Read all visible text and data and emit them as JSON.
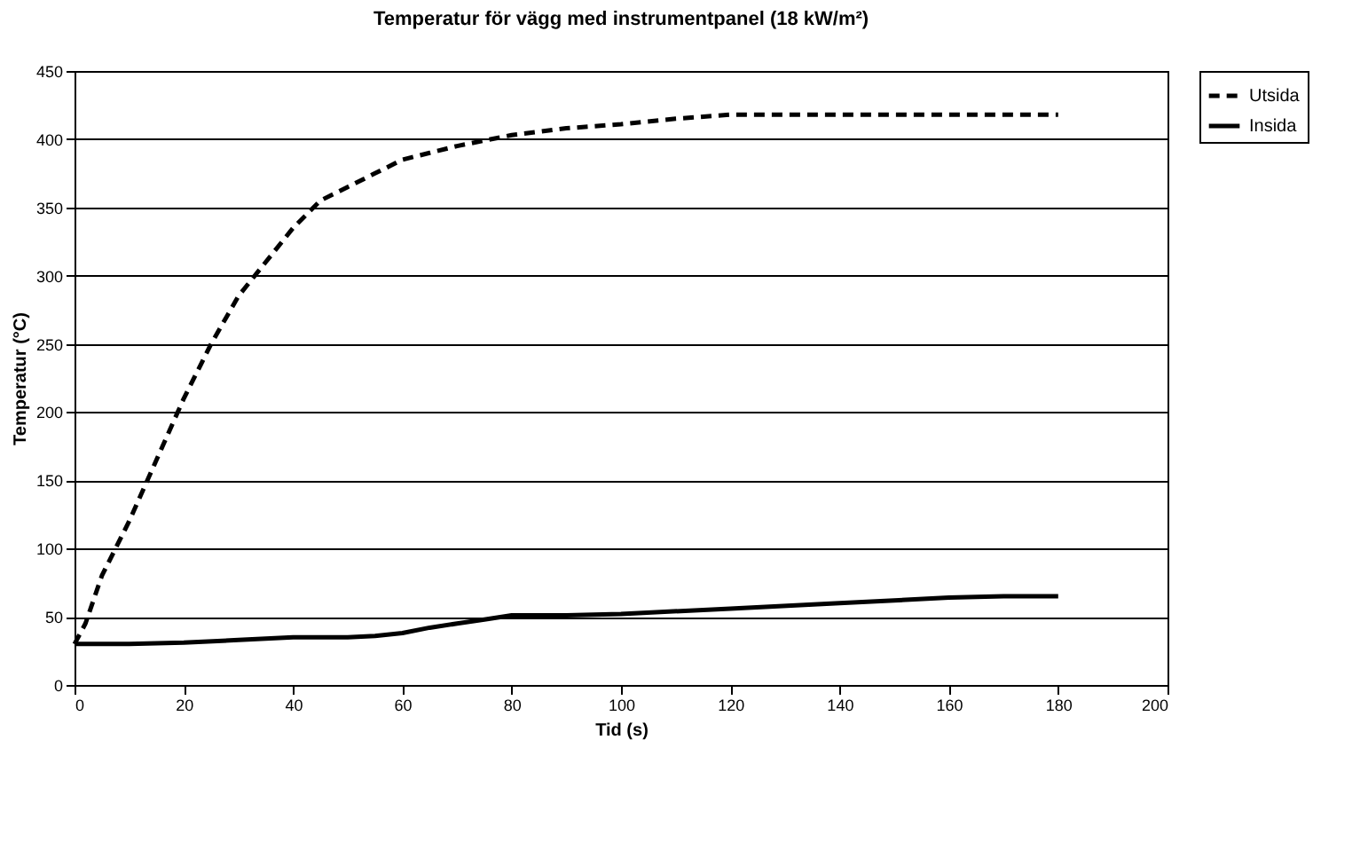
{
  "chart_data": {
    "type": "line",
    "title": "Temperatur för vägg med instrumentpanel (18 kW/m²)",
    "xlabel": "Tid (s)",
    "ylabel": "Temperatur (°C)",
    "xlim": [
      0,
      200
    ],
    "xticks": [
      0,
      20,
      40,
      60,
      80,
      100,
      120,
      140,
      160,
      180,
      200
    ],
    "ylim": [
      0,
      450
    ],
    "yticks": [
      0,
      50,
      100,
      150,
      200,
      250,
      300,
      350,
      400,
      450
    ],
    "grid": "y",
    "legend": "right",
    "marker": "none",
    "series": [
      {
        "name": "Utsida",
        "color": "#000000",
        "line_style": "dashed",
        "x": [
          0,
          2,
          5,
          10,
          15,
          20,
          25,
          30,
          35,
          40,
          45,
          50,
          55,
          60,
          65,
          70,
          80,
          90,
          100,
          110,
          120,
          140,
          160,
          180
        ],
        "values": [
          30,
          45,
          80,
          120,
          165,
          210,
          250,
          285,
          310,
          335,
          355,
          365,
          375,
          385,
          390,
          395,
          403,
          408,
          411,
          415,
          418,
          418,
          418,
          418
        ]
      },
      {
        "name": "Insida",
        "color": "#000000",
        "line_style": "solid",
        "x": [
          0,
          10,
          20,
          30,
          40,
          50,
          55,
          60,
          65,
          70,
          75,
          80,
          85,
          90,
          100,
          120,
          140,
          160,
          170,
          180
        ],
        "values": [
          30,
          30,
          31,
          33,
          35,
          35,
          36,
          38,
          42,
          45,
          48,
          51,
          51,
          51,
          52,
          56,
          60,
          64,
          65,
          65
        ]
      }
    ]
  }
}
